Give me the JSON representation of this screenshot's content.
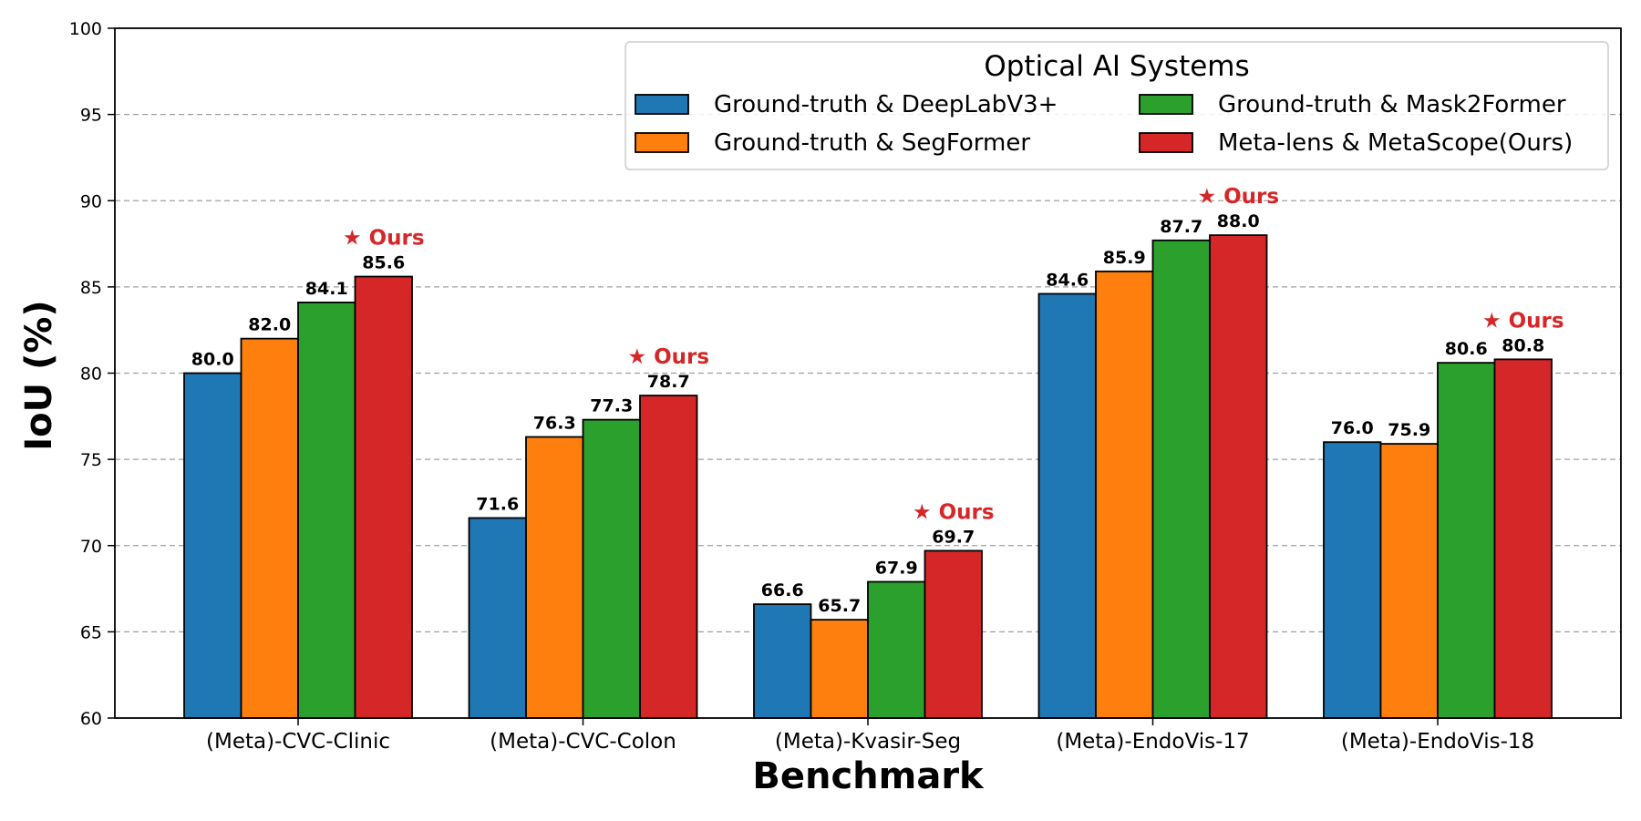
{
  "chart_data": {
    "type": "bar",
    "title": "",
    "xlabel": "Benchmark",
    "ylabel": "IoU (%)",
    "ylim": [
      60,
      100
    ],
    "yticks": [
      60,
      65,
      70,
      75,
      80,
      85,
      90,
      95,
      100
    ],
    "grid": "horizontal dashed",
    "categories": [
      "(Meta)-CVC-Clinic",
      "(Meta)-CVC-Colon",
      "(Meta)-Kvasir-Seg",
      "(Meta)-EndoVis-17",
      "(Meta)-EndoVis-18"
    ],
    "series": [
      {
        "name": "Ground-truth & DeepLabV3+",
        "color": "#1f77b4",
        "values": [
          80.0,
          71.6,
          66.6,
          84.6,
          76.0
        ]
      },
      {
        "name": "Ground-truth & SegFormer",
        "color": "#ff7f0e",
        "values": [
          82.0,
          76.3,
          65.7,
          85.9,
          75.9
        ]
      },
      {
        "name": "Ground-truth  & Mask2Former",
        "color": "#2ca02c",
        "values": [
          84.1,
          77.3,
          67.9,
          87.7,
          80.6
        ]
      },
      {
        "name": "Meta-lens & MetaScope(Ours)",
        "color": "#d62728",
        "values": [
          85.6,
          78.7,
          69.7,
          88.0,
          80.8
        ]
      }
    ],
    "annotation": {
      "text": "★ Ours",
      "series_index": 3,
      "color": "#d62728"
    },
    "legend": {
      "title": "Optical AI Systems",
      "position": "top-right",
      "columns": 2
    }
  }
}
